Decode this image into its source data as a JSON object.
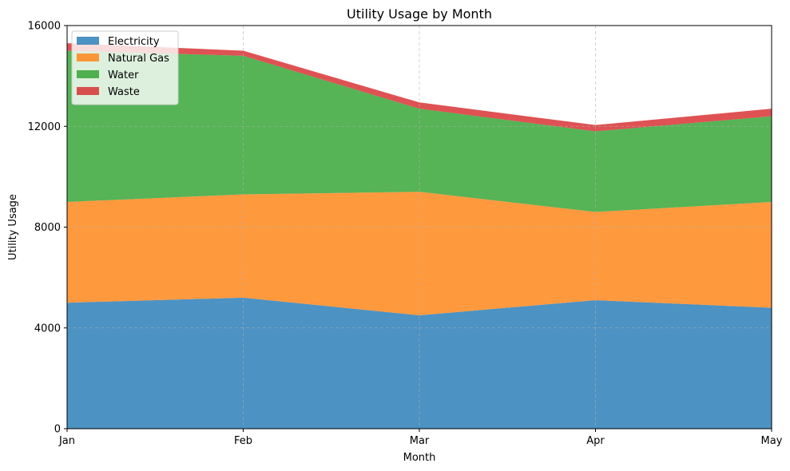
{
  "chart_data": {
    "type": "area",
    "stacked": true,
    "title": "Utility Usage by Month",
    "xlabel": "Month",
    "ylabel": "Utility Usage",
    "categories": [
      "Jan",
      "Feb",
      "Mar",
      "Apr",
      "May"
    ],
    "ylim": [
      0,
      16000
    ],
    "yticks": [
      0,
      4000,
      8000,
      12000,
      16000
    ],
    "grid": true,
    "legend_position": "top-left",
    "series": [
      {
        "name": "Electricity",
        "color": "#1f77b4",
        "values": [
          5000,
          5200,
          4500,
          5100,
          4800
        ]
      },
      {
        "name": "Natural Gas",
        "color": "#ff7f0e",
        "values": [
          4000,
          4100,
          4900,
          3500,
          4200
        ]
      },
      {
        "name": "Water",
        "color": "#2ca02c",
        "values": [
          6000,
          5500,
          3300,
          3200,
          3400
        ]
      },
      {
        "name": "Waste",
        "color": "#d62728",
        "values": [
          300,
          200,
          250,
          250,
          300
        ]
      }
    ]
  }
}
